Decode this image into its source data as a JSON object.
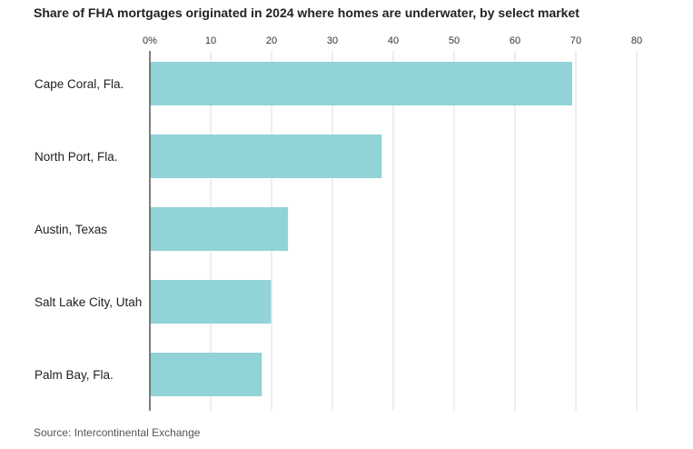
{
  "chart_data": {
    "type": "bar",
    "orientation": "horizontal",
    "title": "Share of FHA mortgages originated in 2024 where homes are underwater, by select market",
    "categories": [
      "Cape Coral, Fla.",
      "North Port, Fla.",
      "Austin, Texas",
      "Salt Lake City, Utah",
      "Palm Bay, Fla."
    ],
    "values": [
      69.4,
      38.1,
      22.7,
      19.9,
      18.4
    ],
    "xlim": [
      0,
      80
    ],
    "ticks": [
      0,
      10,
      20,
      30,
      40,
      50,
      60,
      70,
      80
    ],
    "tick_labels": [
      "0%",
      "10",
      "20",
      "30",
      "40",
      "50",
      "60",
      "70",
      "80"
    ],
    "axis_position": "top",
    "grid": true,
    "bar_color": "#92d3d8",
    "grid_color": "#dddddd",
    "axis_color": "#555555"
  },
  "source": "Source: Intercontinental Exchange"
}
